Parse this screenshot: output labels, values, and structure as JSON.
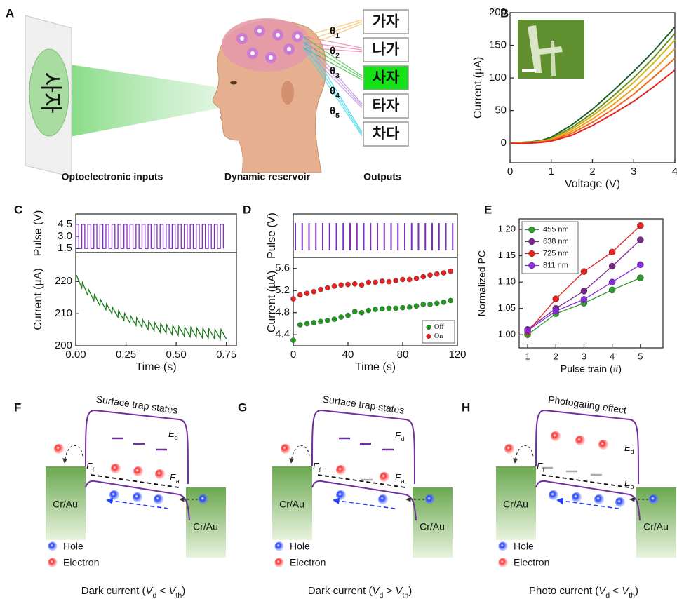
{
  "panel_a": {
    "label": "A",
    "input_text": "사자",
    "thetas": [
      [
        "θ",
        "1"
      ],
      [
        "θ",
        "2"
      ],
      [
        "θ",
        "3"
      ],
      [
        "θ",
        "4"
      ],
      [
        "θ",
        "5"
      ]
    ],
    "outputs": [
      "가자",
      "나가",
      "사자",
      "타자",
      "차다"
    ],
    "captions": [
      "Optoelectronic inputs",
      "Dynamic reservoir",
      "Outputs"
    ]
  },
  "chart_data": [
    {
      "label": "B",
      "type": "line",
      "x_label": "Voltage (V)",
      "y_label": "Current (µA)",
      "x": [
        0,
        0.25,
        0.5,
        0.75,
        1,
        1.5,
        2,
        2.5,
        3,
        3.5,
        4
      ],
      "series": [
        {
          "color": "#1f5c2a",
          "values": [
            0,
            1,
            2,
            4,
            9,
            28,
            52,
            80,
            110,
            142,
            178
          ]
        },
        {
          "color": "#6a8e1e",
          "values": [
            0,
            0.5,
            1.5,
            3,
            7,
            24,
            46,
            72,
            100,
            132,
            168
          ]
        },
        {
          "color": "#d2b31c",
          "values": [
            0,
            0.5,
            1.5,
            3,
            6,
            21,
            42,
            66,
            93,
            124,
            158
          ]
        },
        {
          "color": "#f0a020",
          "values": [
            0,
            0.5,
            1,
            2,
            5,
            18,
            37,
            59,
            84,
            113,
            145
          ]
        },
        {
          "color": "#f06a20",
          "values": [
            0,
            0,
            1,
            2,
            4,
            15,
            32,
            52,
            75,
            102,
            130
          ]
        },
        {
          "color": "#e82020",
          "values": [
            0,
            -1,
            0,
            1,
            3,
            12,
            27,
            45,
            64,
            87,
            112
          ]
        }
      ],
      "xlim": [
        0,
        4
      ],
      "ylim": [
        -30,
        200
      ],
      "xticks": [
        0,
        1,
        2,
        3,
        4
      ],
      "yticks": [
        0,
        50,
        100,
        150,
        200
      ]
    },
    {
      "label": "C",
      "type": "line",
      "y_label": "Pulse (V)",
      "x": [
        0,
        0,
        0.015,
        0.015,
        0.03,
        0.03,
        0.045,
        0.045,
        0.06,
        0.06,
        0.075,
        0.075,
        0.09,
        0.09,
        0.105,
        0.105,
        0.12,
        0.12,
        0.135,
        0.135,
        0.15,
        0.15,
        0.165,
        0.165,
        0.18,
        0.18,
        0.195,
        0.195,
        0.21,
        0.21,
        0.225,
        0.225,
        0.24,
        0.24,
        0.255,
        0.255,
        0.27,
        0.27,
        0.285,
        0.285,
        0.3,
        0.3,
        0.315,
        0.315,
        0.33,
        0.33,
        0.345,
        0.345,
        0.36,
        0.36,
        0.375,
        0.375,
        0.39,
        0.39,
        0.405,
        0.405,
        0.42,
        0.42,
        0.435,
        0.435,
        0.45,
        0.45,
        0.465,
        0.465,
        0.48,
        0.48,
        0.495,
        0.495,
        0.51,
        0.51,
        0.525,
        0.525,
        0.54,
        0.54,
        0.555,
        0.555,
        0.57,
        0.57,
        0.585,
        0.585,
        0.6,
        0.6,
        0.615,
        0.615,
        0.63,
        0.63,
        0.645,
        0.645,
        0.66,
        0.66,
        0.675,
        0.675,
        0.69,
        0.69,
        0.705,
        0.705,
        0.72,
        0.72,
        0.735,
        0.735
      ],
      "series": [
        {
          "color": "#7b2fbe",
          "values": [
            1.5,
            4.5,
            4.5,
            1.5,
            1.5,
            4.5,
            4.5,
            1.5,
            1.5,
            4.5,
            4.5,
            1.5,
            1.5,
            4.5,
            4.5,
            1.5,
            1.5,
            4.5,
            4.5,
            1.5,
            1.5,
            4.5,
            4.5,
            1.5,
            1.5,
            4.5,
            4.5,
            1.5,
            1.5,
            4.5,
            4.5,
            1.5,
            1.5,
            4.5,
            4.5,
            1.5,
            1.5,
            4.5,
            4.5,
            1.5,
            1.5,
            4.5,
            4.5,
            1.5,
            1.5,
            4.5,
            4.5,
            1.5,
            1.5,
            4.5,
            4.5,
            1.5,
            1.5,
            4.5,
            4.5,
            1.5,
            1.5,
            4.5,
            4.5,
            1.5,
            1.5,
            4.5,
            4.5,
            1.5,
            1.5,
            4.5,
            4.5,
            1.5,
            1.5,
            4.5,
            4.5,
            1.5,
            1.5,
            4.5,
            4.5,
            1.5,
            1.5,
            4.5,
            4.5,
            1.5,
            1.5,
            4.5,
            4.5,
            1.5,
            1.5,
            4.5,
            4.5,
            1.5,
            1.5,
            4.5,
            4.5,
            1.5,
            1.5,
            4.5,
            4.5,
            1.5,
            1.5,
            4.5,
            4.5,
            1.5
          ]
        }
      ],
      "xlim": [
        0,
        0.8
      ],
      "ylim": [
        1,
        5.8
      ],
      "yticks": [
        1.5,
        {
          "value": 3,
          "label": "3.0"
        },
        4.5
      ]
    },
    {
      "type": "line",
      "x_label": "Time (s)",
      "y_label": "Current (µA)",
      "x": [
        0.003,
        0.03,
        0.033,
        0.06,
        0.063,
        0.09,
        0.093,
        0.12,
        0.123,
        0.15,
        0.153,
        0.18,
        0.183,
        0.21,
        0.213,
        0.24,
        0.243,
        0.27,
        0.273,
        0.3,
        0.303,
        0.33,
        0.333,
        0.36,
        0.363,
        0.39,
        0.393,
        0.42,
        0.423,
        0.45,
        0.453,
        0.48,
        0.483,
        0.51,
        0.513,
        0.54,
        0.543,
        0.57,
        0.573,
        0.6,
        0.603,
        0.63,
        0.633,
        0.66,
        0.663,
        0.69,
        0.693,
        0.72,
        0.723,
        0.75
      ],
      "series": [
        {
          "color": "#1a7a1a",
          "values": [
            222,
            218,
            219.7,
            215.7,
            217.6,
            214,
            215.9,
            212.5,
            214.4,
            211.2,
            213.1,
            210,
            211.9,
            208.9,
            210.9,
            207.9,
            210.1,
            207.1,
            209.3,
            206.3,
            208.7,
            205.7,
            208.1,
            205.1,
            207.7,
            204.7,
            207.2,
            204.2,
            206.9,
            203.9,
            206.5,
            203.5,
            206.3,
            203.3,
            206,
            203,
            205.8,
            202.8,
            205.7,
            202.7,
            205.5,
            202.5,
            205.4,
            202.4,
            205.3,
            202.3,
            205.1,
            202.1,
            205.1,
            202.1
          ]
        }
      ],
      "xlim": [
        0,
        0.8
      ],
      "ylim": [
        200,
        229
      ],
      "xticks": [
        {
          "value": 0,
          "label": "0.00"
        },
        0.25,
        {
          "value": 0.5,
          "label": "0.50"
        },
        0.75
      ],
      "yticks": [
        200,
        210,
        220
      ]
    },
    {
      "label": "D",
      "type": "pulse",
      "y_label": "Pulse (V)",
      "color": "#7b2fbe",
      "x": [
        0,
        5,
        10,
        15,
        20,
        25,
        30,
        35,
        40,
        45,
        50,
        55,
        60,
        65,
        70,
        75,
        80,
        85,
        90,
        95,
        100,
        105,
        110,
        115
      ],
      "xlim": [
        0,
        120
      ]
    },
    {
      "type": "scatter",
      "x_label": "Time (s)",
      "y_label": "Current (µA)",
      "x": [
        0,
        5,
        10,
        15,
        20,
        25,
        30,
        35,
        40,
        45,
        50,
        55,
        60,
        65,
        70,
        75,
        80,
        85,
        90,
        95,
        100,
        105,
        110,
        115
      ],
      "series": [
        {
          "name": "Off",
          "color": "#1e9a1e",
          "values": [
            4.3,
            4.58,
            4.6,
            4.62,
            4.64,
            4.66,
            4.68,
            4.72,
            4.75,
            4.82,
            4.8,
            4.84,
            4.86,
            4.87,
            4.88,
            4.88,
            4.89,
            4.9,
            4.92,
            4.95,
            4.95,
            4.97,
            4.99,
            5.02
          ]
        },
        {
          "name": "On",
          "color": "#e82020",
          "values": [
            5.05,
            5.12,
            5.15,
            5.18,
            5.22,
            5.25,
            5.28,
            5.3,
            5.31,
            5.32,
            5.3,
            5.35,
            5.35,
            5.37,
            5.36,
            5.38,
            5.4,
            5.4,
            5.42,
            5.45,
            5.48,
            5.5,
            5.52,
            5.55
          ]
        }
      ],
      "xlim": [
        0,
        120
      ],
      "ylim": [
        4.2,
        5.8
      ],
      "xticks": [
        0,
        40,
        80,
        120
      ],
      "yticks": [
        4.4,
        4.8,
        5.2,
        5.6
      ],
      "legend": "lower right"
    },
    {
      "label": "E",
      "type": "line",
      "markers": true,
      "x_label": "Pulse train (#)",
      "y_label": "Normalized PC",
      "x": [
        1,
        2,
        3,
        4,
        5
      ],
      "series": [
        {
          "name": "455 nm",
          "color": "#2e9a2e",
          "values": [
            1.0,
            1.04,
            1.06,
            1.085,
            1.108
          ]
        },
        {
          "name": "638 nm",
          "color": "#7b2a8c",
          "values": [
            1.01,
            1.05,
            1.083,
            1.13,
            1.18
          ]
        },
        {
          "name": "725 nm",
          "color": "#e8231f",
          "values": [
            1.005,
            1.068,
            1.12,
            1.157,
            1.207
          ]
        },
        {
          "name": "811 nm",
          "color": "#8a2be2",
          "values": [
            1.008,
            1.045,
            1.067,
            1.1,
            1.133
          ]
        }
      ],
      "xlim": [
        0.7,
        5.8
      ],
      "ylim": [
        0.975,
        1.22
      ],
      "xticks": [
        1,
        2,
        3,
        4,
        5
      ],
      "yticks": [
        {
          "value": 1,
          "label": "1.00"
        },
        1.05,
        {
          "value": 1.1,
          "label": "1.10"
        },
        1.15,
        {
          "value": 1.2,
          "label": "1.20"
        }
      ],
      "legend": "upper left"
    }
  ],
  "band_diagrams": [
    {
      "label": "F",
      "title": "Surface trap states",
      "ef": [
        "E",
        "f"
      ],
      "ed": [
        "E",
        "d"
      ],
      "ea": [
        "E",
        "a"
      ],
      "contacts": [
        "Cr/Au",
        "Cr/Au"
      ],
      "legend": [
        "Hole",
        "Electron"
      ],
      "caption": [
        "Dark current (",
        "V",
        "d",
        " < ",
        "V",
        "th",
        ")"
      ]
    },
    {
      "label": "G",
      "title": "Surface trap states",
      "ef": [
        "E",
        "f"
      ],
      "ed": [
        "E",
        "d"
      ],
      "ea": [
        "E",
        "a"
      ],
      "contacts": [
        "Cr/Au",
        "Cr/Au"
      ],
      "legend": [
        "Hole",
        "Electron"
      ],
      "caption": [
        "Dark current (",
        "V",
        "d",
        " > ",
        "V",
        "th",
        ")"
      ]
    },
    {
      "label": "H",
      "title": "Photogating effect",
      "ef": [
        "E",
        "f"
      ],
      "ed": [
        "E",
        "d"
      ],
      "ea": [
        "E",
        "a"
      ],
      "contacts": [
        "Cr/Au",
        "Cr/Au"
      ],
      "legend": [
        "Hole",
        "Electron"
      ],
      "caption": [
        "Photo current (",
        "V",
        "d",
        " < ",
        "V",
        "th",
        ")"
      ]
    }
  ]
}
